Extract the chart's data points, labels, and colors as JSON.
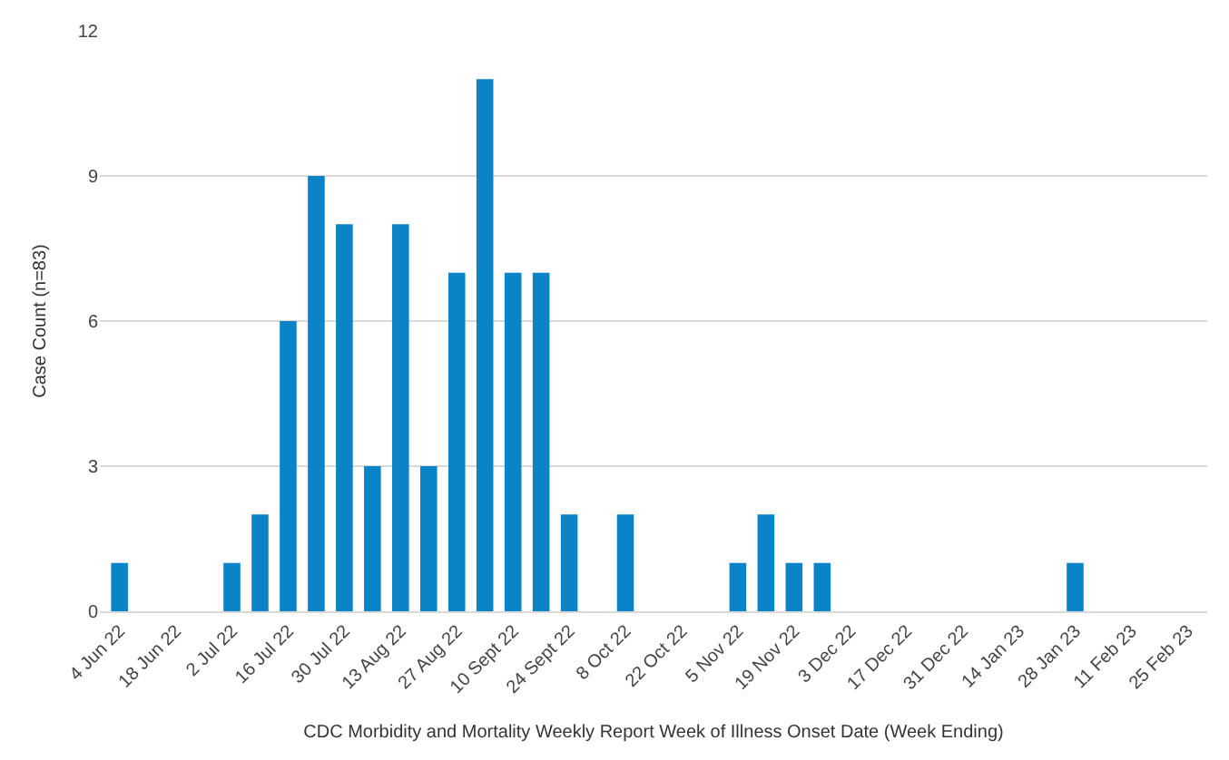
{
  "chart_data": {
    "type": "bar",
    "xlabel": "CDC Morbidity and Mortality Weekly Report Week of Illness Onset Date (Week Ending)",
    "ylabel": "Case Count (n=83)",
    "categories": [
      "4 Jun 22",
      null,
      "18 Jun 22",
      null,
      "2 Jul 22",
      null,
      "16 Jul 22",
      null,
      "30 Jul 22",
      null,
      "13 Aug 22",
      null,
      "27 Aug 22",
      null,
      "10 Sept 22",
      null,
      "24 Sept 22",
      null,
      "8 Oct 22",
      null,
      "22 Oct 22",
      null,
      "5 Nov 22",
      null,
      "19 Nov 22",
      null,
      "3 Dec 22",
      null,
      "17 Dec 22",
      null,
      "31 Dec 22",
      null,
      "14 Jan 23",
      null,
      "28 Jan 23",
      null,
      "11 Feb 23",
      null,
      "25 Feb 23"
    ],
    "values": [
      1,
      0,
      0,
      0,
      1,
      2,
      6,
      9,
      8,
      3,
      8,
      3,
      7,
      11,
      7,
      7,
      2,
      0,
      2,
      0,
      0,
      0,
      1,
      2,
      1,
      1,
      0,
      0,
      0,
      0,
      0,
      0,
      0,
      0,
      1,
      0,
      0,
      0,
      0
    ],
    "color": "#0a84c6",
    "ylim": [
      0,
      12
    ],
    "yticks": [
      0,
      3,
      6,
      9,
      12
    ],
    "grid": "y",
    "legend": false
  }
}
